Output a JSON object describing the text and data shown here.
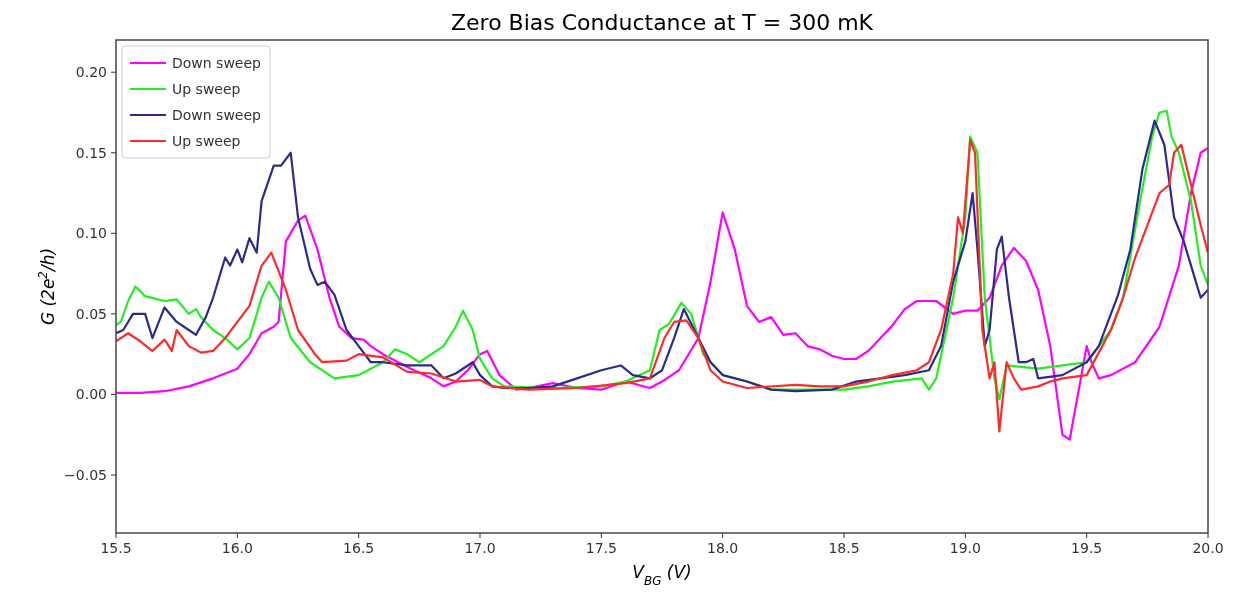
{
  "chart_data": {
    "type": "line",
    "title": "Zero Bias Conductance at T = 300 mK",
    "xlabel": "V$_{BG}$ (V)",
    "ylabel": "G (2e$^{2}$/h)",
    "xlim": [
      15.5,
      20.0
    ],
    "ylim": [
      -0.086,
      0.22
    ],
    "xticks": [
      15.5,
      {
        "value": 16,
        "label": "16.0"
      },
      16.5,
      {
        "value": 17,
        "label": "17.0"
      },
      17.5,
      {
        "value": 18,
        "label": "18.0"
      },
      18.5,
      {
        "value": 19,
        "label": "19.0"
      },
      19.5,
      {
        "value": 20,
        "label": "20.0"
      }
    ],
    "yticks": [
      {
        "value": -0.05,
        "label": "−0.05"
      },
      {
        "value": 0,
        "label": "0.00"
      },
      0.05,
      {
        "value": 0.1,
        "label": "0.10"
      },
      0.15,
      {
        "value": 0.2,
        "label": "0.20"
      }
    ],
    "legend": "top left",
    "grid": false,
    "series": [
      {
        "name": "Down sweep",
        "color": "#ff00ff",
        "x": [
          15.5,
          15.6,
          15.7,
          15.8,
          15.9,
          16.0,
          16.05,
          16.1,
          16.15,
          16.17,
          16.2,
          16.25,
          16.28,
          16.33,
          16.38,
          16.42,
          16.47,
          16.52,
          16.55,
          16.6,
          16.7,
          16.8,
          16.85,
          16.9,
          16.95,
          17.0,
          17.03,
          17.08,
          17.15,
          17.2,
          17.3,
          17.4,
          17.5,
          17.6,
          17.7,
          17.75,
          17.82,
          17.9,
          17.95,
          18.0,
          18.05,
          18.1,
          18.15,
          18.2,
          18.25,
          18.3,
          18.35,
          18.4,
          18.45,
          18.5,
          18.55,
          18.6,
          18.7,
          18.75,
          18.8,
          18.88,
          18.95,
          19.0,
          19.05,
          19.1,
          19.15,
          19.2,
          19.25,
          19.3,
          19.35,
          19.4,
          19.43,
          19.47,
          19.5,
          19.52,
          19.55,
          19.6,
          19.7,
          19.8,
          19.88,
          19.93,
          19.97,
          20.0
        ],
        "values": [
          0.001,
          0.001,
          0.002,
          0.005,
          0.01,
          0.016,
          0.025,
          0.038,
          0.042,
          0.045,
          0.095,
          0.108,
          0.111,
          0.09,
          0.06,
          0.042,
          0.035,
          0.034,
          0.03,
          0.025,
          0.017,
          0.01,
          0.005,
          0.008,
          0.015,
          0.025,
          0.027,
          0.012,
          0.003,
          0.004,
          0.007,
          0.004,
          0.003,
          0.008,
          0.004,
          0.008,
          0.015,
          0.035,
          0.07,
          0.113,
          0.09,
          0.055,
          0.045,
          0.048,
          0.037,
          0.038,
          0.03,
          0.028,
          0.024,
          0.022,
          0.022,
          0.027,
          0.043,
          0.053,
          0.058,
          0.058,
          0.05,
          0.052,
          0.052,
          0.06,
          0.08,
          0.091,
          0.083,
          0.065,
          0.03,
          -0.025,
          -0.028,
          0.005,
          0.03,
          0.02,
          0.01,
          0.012,
          0.02,
          0.042,
          0.08,
          0.125,
          0.15,
          0.153
        ]
      },
      {
        "name": "Up sweep",
        "color": "#22ee22",
        "x": [
          15.5,
          15.52,
          15.55,
          15.58,
          15.62,
          15.7,
          15.75,
          15.8,
          15.83,
          15.85,
          15.9,
          15.95,
          16.0,
          16.05,
          16.1,
          16.13,
          16.17,
          16.22,
          16.3,
          16.4,
          16.5,
          16.6,
          16.65,
          16.7,
          16.75,
          16.85,
          16.9,
          16.93,
          16.97,
          17.0,
          17.05,
          17.1,
          17.3,
          17.5,
          17.6,
          17.7,
          17.74,
          17.78,
          17.83,
          17.87,
          17.92,
          18.0,
          18.1,
          18.2,
          18.3,
          18.5,
          18.6,
          18.7,
          18.82,
          18.85,
          18.88,
          18.95,
          19.0,
          19.02,
          19.05,
          19.08,
          19.12,
          19.14,
          19.17,
          19.3,
          19.4,
          19.5,
          19.6,
          19.65,
          19.72,
          19.77,
          19.8,
          19.83,
          19.85,
          19.88,
          19.93,
          19.97,
          20.0
        ],
        "values": [
          0.043,
          0.045,
          0.058,
          0.067,
          0.061,
          0.058,
          0.059,
          0.05,
          0.053,
          0.048,
          0.04,
          0.035,
          0.028,
          0.035,
          0.06,
          0.07,
          0.06,
          0.035,
          0.02,
          0.01,
          0.012,
          0.02,
          0.028,
          0.025,
          0.02,
          0.03,
          0.042,
          0.052,
          0.04,
          0.022,
          0.01,
          0.005,
          0.004,
          0.005,
          0.008,
          0.015,
          0.04,
          0.044,
          0.057,
          0.05,
          0.025,
          0.012,
          0.008,
          0.003,
          0.003,
          0.003,
          0.005,
          0.008,
          0.01,
          0.003,
          0.01,
          0.06,
          0.11,
          0.16,
          0.15,
          0.06,
          0.01,
          -0.003,
          0.018,
          0.016,
          0.018,
          0.02,
          0.04,
          0.06,
          0.12,
          0.16,
          0.175,
          0.176,
          0.16,
          0.15,
          0.12,
          0.08,
          0.068
        ]
      },
      {
        "name": "Down sweep",
        "color": "#2b2b8f",
        "x": [
          15.5,
          15.53,
          15.57,
          15.62,
          15.65,
          15.7,
          15.75,
          15.8,
          15.83,
          15.87,
          15.9,
          15.95,
          15.97,
          16.0,
          16.02,
          16.05,
          16.08,
          16.1,
          16.15,
          16.18,
          16.22,
          16.25,
          16.3,
          16.33,
          16.36,
          16.4,
          16.45,
          16.5,
          16.55,
          16.6,
          16.7,
          16.8,
          16.85,
          16.9,
          16.97,
          17.0,
          17.05,
          17.1,
          17.2,
          17.3,
          17.4,
          17.5,
          17.58,
          17.63,
          17.7,
          17.75,
          17.8,
          17.84,
          17.9,
          17.95,
          18.0,
          18.1,
          18.2,
          18.3,
          18.45,
          18.55,
          18.65,
          18.75,
          18.85,
          18.9,
          18.95,
          19.0,
          19.03,
          19.05,
          19.08,
          19.1,
          19.13,
          19.15,
          19.18,
          19.22,
          19.25,
          19.28,
          19.3,
          19.4,
          19.5,
          19.55,
          19.6,
          19.63,
          19.68,
          19.73,
          19.78,
          19.82,
          19.86,
          19.9,
          19.94,
          19.97,
          20.0
        ],
        "values": [
          0.038,
          0.04,
          0.05,
          0.05,
          0.035,
          0.054,
          0.045,
          0.04,
          0.037,
          0.048,
          0.06,
          0.085,
          0.08,
          0.09,
          0.082,
          0.097,
          0.088,
          0.12,
          0.142,
          0.142,
          0.15,
          0.11,
          0.078,
          0.068,
          0.07,
          0.062,
          0.04,
          0.03,
          0.02,
          0.02,
          0.018,
          0.018,
          0.01,
          0.013,
          0.02,
          0.012,
          0.005,
          0.004,
          0.004,
          0.005,
          0.01,
          0.015,
          0.018,
          0.012,
          0.01,
          0.015,
          0.035,
          0.053,
          0.035,
          0.02,
          0.012,
          0.008,
          0.003,
          0.002,
          0.003,
          0.008,
          0.01,
          0.012,
          0.015,
          0.03,
          0.07,
          0.095,
          0.125,
          0.09,
          0.03,
          0.04,
          0.09,
          0.098,
          0.06,
          0.02,
          0.02,
          0.022,
          0.01,
          0.012,
          0.02,
          0.03,
          0.05,
          0.062,
          0.09,
          0.14,
          0.17,
          0.155,
          0.11,
          0.095,
          0.075,
          0.06,
          0.065
        ]
      },
      {
        "name": "Up sweep",
        "color": "#ff2a2a",
        "x": [
          15.5,
          15.55,
          15.6,
          15.65,
          15.7,
          15.73,
          15.75,
          15.8,
          15.85,
          15.9,
          15.95,
          16.0,
          16.05,
          16.1,
          16.14,
          16.2,
          16.25,
          16.32,
          16.35,
          16.45,
          16.5,
          16.6,
          16.7,
          16.8,
          16.9,
          17.0,
          17.05,
          17.2,
          17.4,
          17.6,
          17.7,
          17.76,
          17.8,
          17.85,
          17.9,
          17.95,
          18.0,
          18.1,
          18.3,
          18.4,
          18.5,
          18.6,
          18.7,
          18.8,
          18.85,
          18.9,
          18.95,
          18.97,
          18.99,
          19.02,
          19.04,
          19.07,
          19.1,
          19.12,
          19.14,
          19.17,
          19.2,
          19.23,
          19.3,
          19.35,
          19.4,
          19.5,
          19.6,
          19.65,
          19.7,
          19.75,
          19.8,
          19.84,
          19.86,
          19.89,
          19.93,
          19.97,
          20.0
        ],
        "values": [
          0.033,
          0.038,
          0.033,
          0.027,
          0.034,
          0.027,
          0.04,
          0.03,
          0.026,
          0.027,
          0.035,
          0.045,
          0.055,
          0.08,
          0.088,
          0.065,
          0.04,
          0.025,
          0.02,
          0.021,
          0.025,
          0.023,
          0.014,
          0.013,
          0.008,
          0.009,
          0.005,
          0.003,
          0.004,
          0.007,
          0.01,
          0.035,
          0.045,
          0.046,
          0.035,
          0.015,
          0.008,
          0.004,
          0.006,
          0.005,
          0.005,
          0.008,
          0.012,
          0.015,
          0.02,
          0.04,
          0.075,
          0.11,
          0.1,
          0.158,
          0.15,
          0.04,
          0.01,
          0.02,
          -0.023,
          0.02,
          0.01,
          0.003,
          0.005,
          0.008,
          0.01,
          0.012,
          0.04,
          0.06,
          0.085,
          0.105,
          0.125,
          0.13,
          0.15,
          0.155,
          0.13,
          0.105,
          0.088
        ]
      }
    ]
  }
}
